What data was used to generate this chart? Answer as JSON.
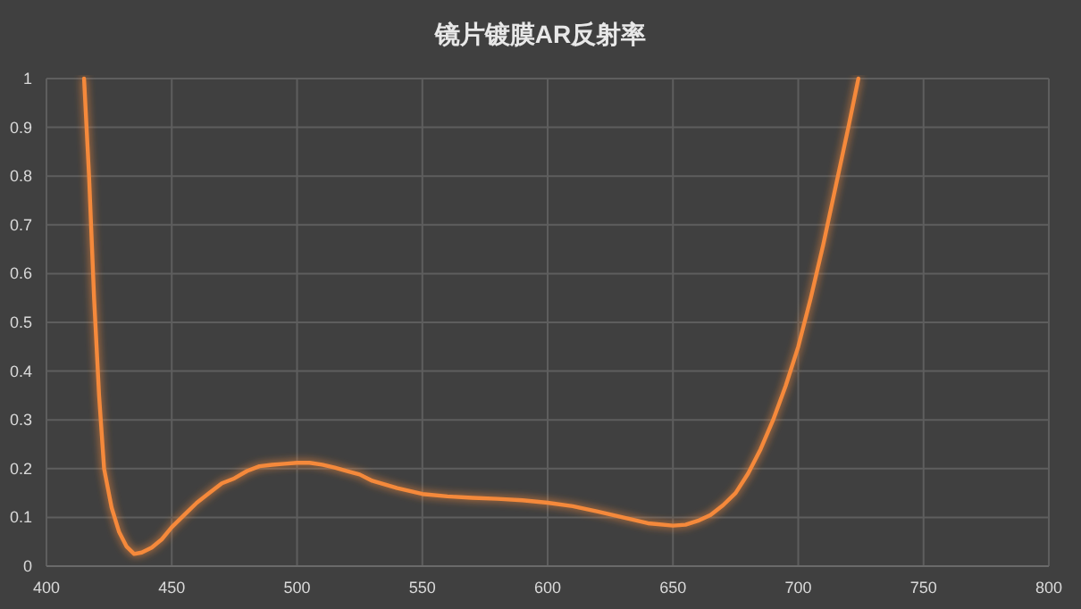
{
  "chart_data": {
    "type": "line",
    "title": "镜片镀膜AR反射率",
    "x": [
      415,
      417,
      419,
      421,
      423,
      426,
      429,
      432,
      435,
      438,
      442,
      446,
      450,
      455,
      460,
      465,
      470,
      475,
      480,
      485,
      490,
      495,
      500,
      505,
      510,
      515,
      520,
      525,
      530,
      540,
      550,
      560,
      570,
      580,
      590,
      600,
      610,
      620,
      630,
      640,
      650,
      655,
      660,
      665,
      670,
      675,
      680,
      685,
      690,
      695,
      700,
      705,
      710,
      715,
      720,
      724
    ],
    "series": [
      {
        "color": "#f5893a",
        "values": [
          1.0,
          0.8,
          0.55,
          0.35,
          0.2,
          0.12,
          0.07,
          0.04,
          0.025,
          0.028,
          0.038,
          0.055,
          0.08,
          0.105,
          0.13,
          0.15,
          0.17,
          0.18,
          0.195,
          0.205,
          0.208,
          0.21,
          0.212,
          0.212,
          0.208,
          0.202,
          0.195,
          0.188,
          0.175,
          0.16,
          0.148,
          0.143,
          0.14,
          0.138,
          0.135,
          0.13,
          0.123,
          0.112,
          0.1,
          0.088,
          0.083,
          0.085,
          0.093,
          0.105,
          0.125,
          0.15,
          0.19,
          0.24,
          0.3,
          0.37,
          0.45,
          0.55,
          0.66,
          0.78,
          0.9,
          1.0
        ]
      }
    ],
    "xlim": [
      400,
      800
    ],
    "xticks": [
      400,
      450,
      500,
      550,
      600,
      650,
      700,
      750,
      800
    ],
    "ylim": [
      0,
      1
    ],
    "yticks": [
      0,
      0.1,
      0.2,
      0.3,
      0.4,
      0.5,
      0.6,
      0.7,
      0.8,
      0.9,
      1
    ],
    "grid": true
  }
}
